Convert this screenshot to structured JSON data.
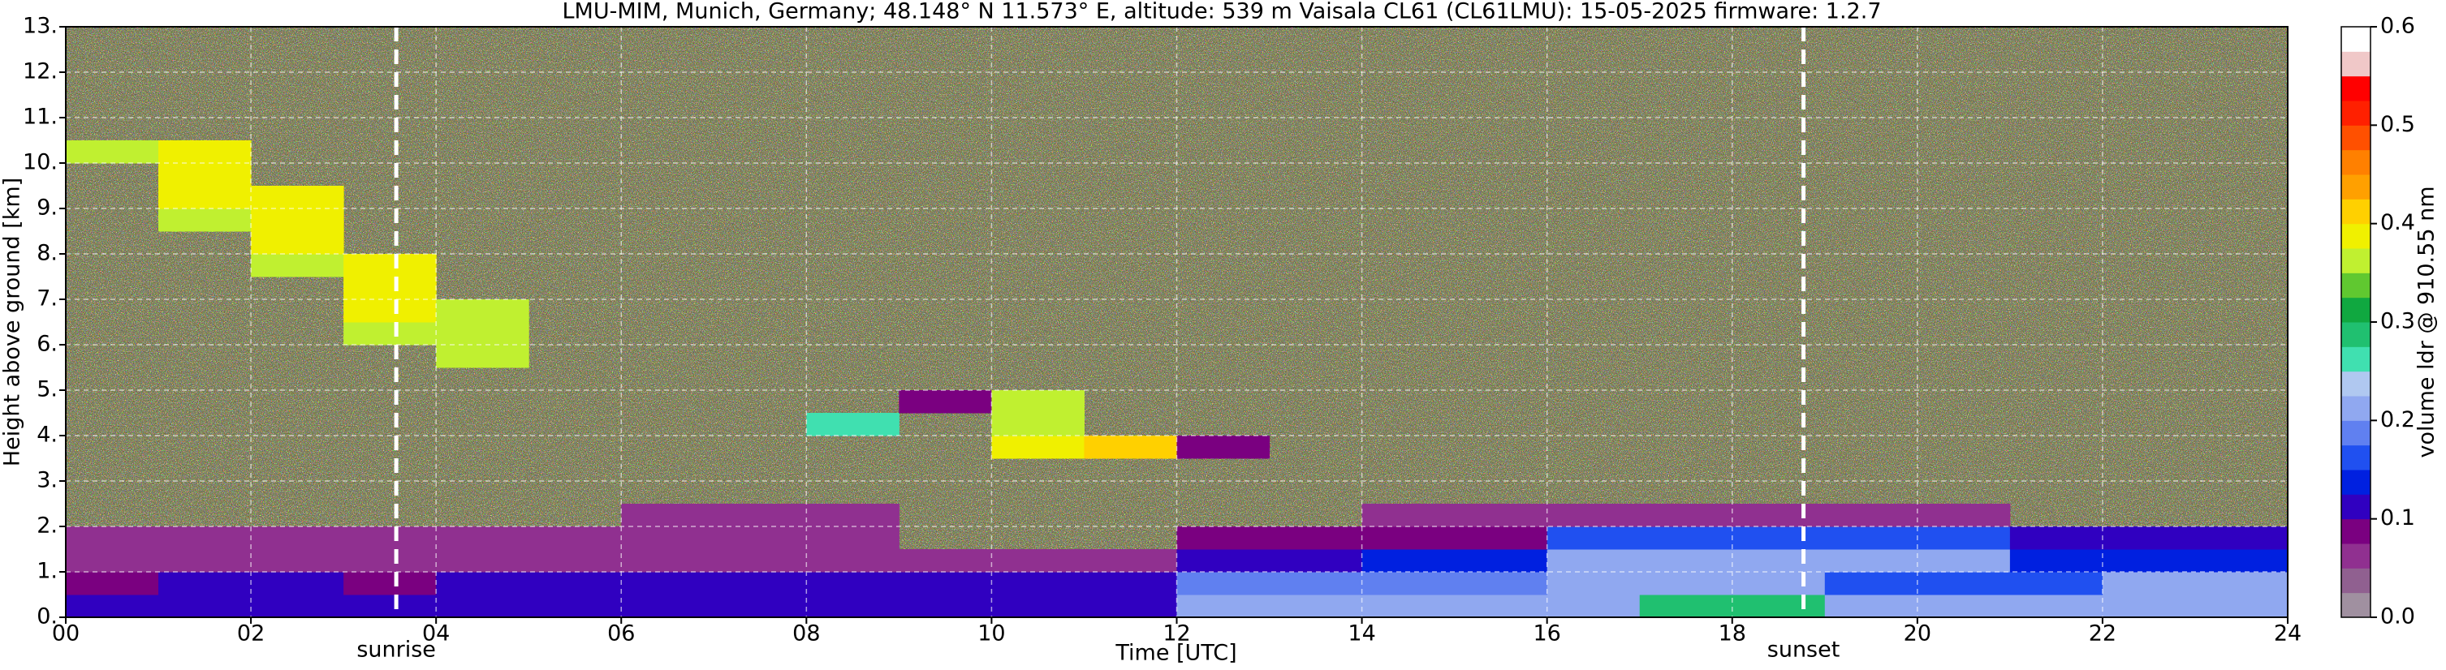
{
  "chart_data": {
    "type": "heatmap",
    "title": "LMU-MIM, Munich, Germany; 48.148° N 11.573° E, altitude: 539 m    Vaisala CL61 (CL61LMU): 15-05-2025    firmware: 1.2.7",
    "x_label": "Time [UTC]",
    "y_label": "Height above ground [km]",
    "xlim": [
      0,
      24
    ],
    "ylim": [
      0,
      13
    ],
    "xticks": [
      {
        "value": 0,
        "label": "00"
      },
      {
        "value": 2,
        "label": "02"
      },
      {
        "value": 4,
        "label": "04"
      },
      {
        "value": 6,
        "label": "06"
      },
      {
        "value": 8,
        "label": "08"
      },
      10,
      12,
      14,
      16,
      18,
      20,
      22,
      24
    ],
    "yticks": [
      {
        "value": 0,
        "label": "0."
      },
      {
        "value": 1,
        "label": "1."
      },
      {
        "value": 2,
        "label": "2."
      },
      {
        "value": 3,
        "label": "3."
      },
      {
        "value": 4,
        "label": "4."
      },
      {
        "value": 5,
        "label": "5."
      },
      {
        "value": 6,
        "label": "6."
      },
      {
        "value": 7,
        "label": "7."
      },
      {
        "value": 8,
        "label": "8."
      },
      {
        "value": 9,
        "label": "9."
      },
      {
        "value": 10,
        "label": "10."
      },
      {
        "value": 11,
        "label": "11."
      },
      {
        "value": 12,
        "label": "12."
      },
      {
        "value": 13,
        "label": "13."
      }
    ],
    "grid": true,
    "annotations": [
      {
        "text": "sunrise",
        "x": 3.57
      },
      {
        "text": "sunset",
        "x": 18.77
      }
    ],
    "x_bins": [
      0,
      1,
      2,
      3,
      4,
      5,
      6,
      7,
      8,
      9,
      10,
      11,
      12,
      13,
      14,
      15,
      16,
      17,
      18,
      19,
      20,
      21,
      22,
      23,
      24
    ],
    "y_bins": [
      0,
      0.5,
      1,
      1.5,
      2,
      2.5,
      3,
      3.5,
      4,
      4.5,
      5,
      5.5,
      6,
      6.5,
      7,
      7.5,
      8,
      8.5,
      9,
      9.5,
      10,
      10.5,
      11,
      11.5,
      12,
      12.5,
      13
    ],
    "values": [
      [
        0.11,
        0.11,
        0.11,
        0.11,
        0.11,
        0.11,
        0.11,
        0.11,
        0.11,
        0.11,
        0.11,
        0.11,
        0.21,
        0.21,
        0.21,
        0.21,
        0.21,
        0.28,
        0.28,
        0.2,
        0.2,
        0.2,
        0.22,
        0.22
      ],
      [
        0.09,
        0.1,
        0.1,
        0.08,
        0.11,
        0.11,
        0.11,
        0.11,
        0.11,
        0.11,
        0.11,
        0.11,
        0.19,
        0.19,
        0.19,
        0.19,
        0.21,
        0.21,
        0.21,
        0.17,
        0.17,
        0.17,
        0.2,
        0.2
      ],
      [
        0.07,
        0.07,
        0.07,
        0.07,
        0.07,
        0.07,
        0.07,
        0.07,
        0.07,
        0.07,
        0.07,
        0.07,
        0.1,
        0.1,
        0.14,
        0.14,
        0.2,
        0.2,
        0.2,
        0.2,
        0.2,
        0.13,
        0.13,
        0.13
      ],
      [
        0.07,
        0.07,
        0.07,
        0.07,
        0.06,
        0.06,
        0.06,
        0.06,
        0.06,
        null,
        null,
        null,
        0.08,
        0.08,
        0.08,
        0.08,
        0.17,
        0.17,
        0.17,
        0.17,
        0.17,
        0.11,
        0.11,
        0.11
      ],
      [
        null,
        null,
        null,
        null,
        null,
        null,
        0.07,
        0.07,
        0.07,
        null,
        null,
        null,
        null,
        null,
        0.07,
        0.07,
        0.07,
        0.07,
        0.07,
        0.07,
        0.07,
        null,
        null,
        null
      ],
      [
        null,
        null,
        null,
        null,
        null,
        null,
        null,
        null,
        null,
        null,
        null,
        null,
        null,
        null,
        null,
        null,
        null,
        null,
        null,
        null,
        null,
        null,
        null,
        null
      ],
      [
        null,
        null,
        null,
        null,
        null,
        null,
        null,
        null,
        null,
        null,
        null,
        null,
        null,
        null,
        null,
        null,
        null,
        null,
        null,
        null,
        null,
        null,
        null,
        null
      ],
      [
        null,
        null,
        null,
        null,
        null,
        null,
        null,
        null,
        null,
        null,
        0.38,
        0.4,
        0.08,
        null,
        null,
        null,
        null,
        null,
        null,
        null,
        null,
        null,
        null,
        null
      ],
      [
        null,
        null,
        null,
        null,
        null,
        null,
        null,
        null,
        0.27,
        null,
        0.37,
        null,
        null,
        null,
        null,
        null,
        null,
        null,
        null,
        null,
        null,
        null,
        null,
        null
      ],
      [
        null,
        null,
        null,
        null,
        null,
        null,
        null,
        null,
        null,
        0.08,
        0.36,
        null,
        null,
        null,
        null,
        null,
        null,
        null,
        null,
        null,
        null,
        null,
        null,
        null
      ],
      [
        null,
        null,
        null,
        null,
        null,
        null,
        null,
        null,
        null,
        null,
        null,
        null,
        null,
        null,
        null,
        null,
        null,
        null,
        null,
        null,
        null,
        null,
        null,
        null
      ],
      [
        null,
        null,
        null,
        null,
        0.36,
        null,
        null,
        null,
        null,
        null,
        null,
        null,
        null,
        null,
        null,
        null,
        null,
        null,
        null,
        null,
        null,
        null,
        null,
        null
      ],
      [
        null,
        null,
        null,
        0.37,
        0.37,
        null,
        null,
        null,
        null,
        null,
        null,
        null,
        null,
        null,
        null,
        null,
        null,
        null,
        null,
        null,
        null,
        null,
        null,
        null
      ],
      [
        null,
        null,
        null,
        0.38,
        0.36,
        null,
        null,
        null,
        null,
        null,
        null,
        null,
        null,
        null,
        null,
        null,
        null,
        null,
        null,
        null,
        null,
        null,
        null,
        null
      ],
      [
        null,
        null,
        null,
        0.38,
        null,
        null,
        null,
        null,
        null,
        null,
        null,
        null,
        null,
        null,
        null,
        null,
        null,
        null,
        null,
        null,
        null,
        null,
        null,
        null
      ],
      [
        null,
        null,
        0.37,
        0.38,
        null,
        null,
        null,
        null,
        null,
        null,
        null,
        null,
        null,
        null,
        null,
        null,
        null,
        null,
        null,
        null,
        null,
        null,
        null,
        null
      ],
      [
        null,
        null,
        0.38,
        null,
        null,
        null,
        null,
        null,
        null,
        null,
        null,
        null,
        null,
        null,
        null,
        null,
        null,
        null,
        null,
        null,
        null,
        null,
        null,
        null
      ],
      [
        null,
        0.37,
        0.39,
        null,
        null,
        null,
        null,
        null,
        null,
        null,
        null,
        null,
        null,
        null,
        null,
        null,
        null,
        null,
        null,
        null,
        null,
        null,
        null,
        null
      ],
      [
        null,
        0.38,
        0.39,
        null,
        null,
        null,
        null,
        null,
        null,
        null,
        null,
        null,
        null,
        null,
        null,
        null,
        null,
        null,
        null,
        null,
        null,
        null,
        null,
        null
      ],
      [
        null,
        0.38,
        null,
        null,
        null,
        null,
        null,
        null,
        null,
        null,
        null,
        null,
        null,
        null,
        null,
        null,
        null,
        null,
        null,
        null,
        null,
        null,
        null,
        null
      ],
      [
        0.36,
        0.38,
        null,
        null,
        null,
        null,
        null,
        null,
        null,
        null,
        null,
        null,
        null,
        null,
        null,
        null,
        null,
        null,
        null,
        null,
        null,
        null,
        null,
        null
      ],
      [
        null,
        null,
        null,
        null,
        null,
        null,
        null,
        null,
        null,
        null,
        null,
        null,
        null,
        null,
        null,
        null,
        null,
        null,
        null,
        null,
        null,
        null,
        null,
        null
      ],
      [
        null,
        null,
        null,
        null,
        null,
        null,
        null,
        null,
        null,
        null,
        null,
        null,
        null,
        null,
        null,
        null,
        null,
        null,
        null,
        null,
        null,
        null,
        null,
        null
      ],
      [
        null,
        null,
        null,
        null,
        null,
        null,
        null,
        null,
        null,
        null,
        null,
        null,
        null,
        null,
        null,
        null,
        null,
        null,
        null,
        null,
        null,
        null,
        null,
        null
      ],
      [
        null,
        null,
        null,
        null,
        null,
        null,
        null,
        null,
        null,
        null,
        null,
        null,
        null,
        null,
        null,
        null,
        null,
        null,
        null,
        null,
        null,
        null,
        null,
        null
      ],
      [
        null,
        null,
        null,
        null,
        null,
        null,
        null,
        null,
        null,
        null,
        null,
        null,
        null,
        null,
        null,
        null,
        null,
        null,
        null,
        null,
        null,
        null,
        null,
        null
      ]
    ],
    "colorbar": {
      "label": "volume ldr @ 910.55 nm",
      "lim": [
        0,
        0.6
      ],
      "ticks": [
        {
          "value": 0,
          "label": "0.0"
        },
        0.1,
        0.2,
        0.3,
        0.4,
        0.5,
        0.6
      ],
      "colors": [
        "#a090a0",
        "#906090",
        "#903090",
        "#7a0080",
        "#3000c0",
        "#0020e0",
        "#2050f0",
        "#6080f0",
        "#90a8f0",
        "#b0c8f0",
        "#40e0b0",
        "#20c070",
        "#10a840",
        "#60c830",
        "#c0f030",
        "#f0f000",
        "#ffd000",
        "#ffa000",
        "#ff8000",
        "#ff5000",
        "#ff2000",
        "#ff0000",
        "#f0c8c8",
        "#ffffff"
      ]
    }
  }
}
